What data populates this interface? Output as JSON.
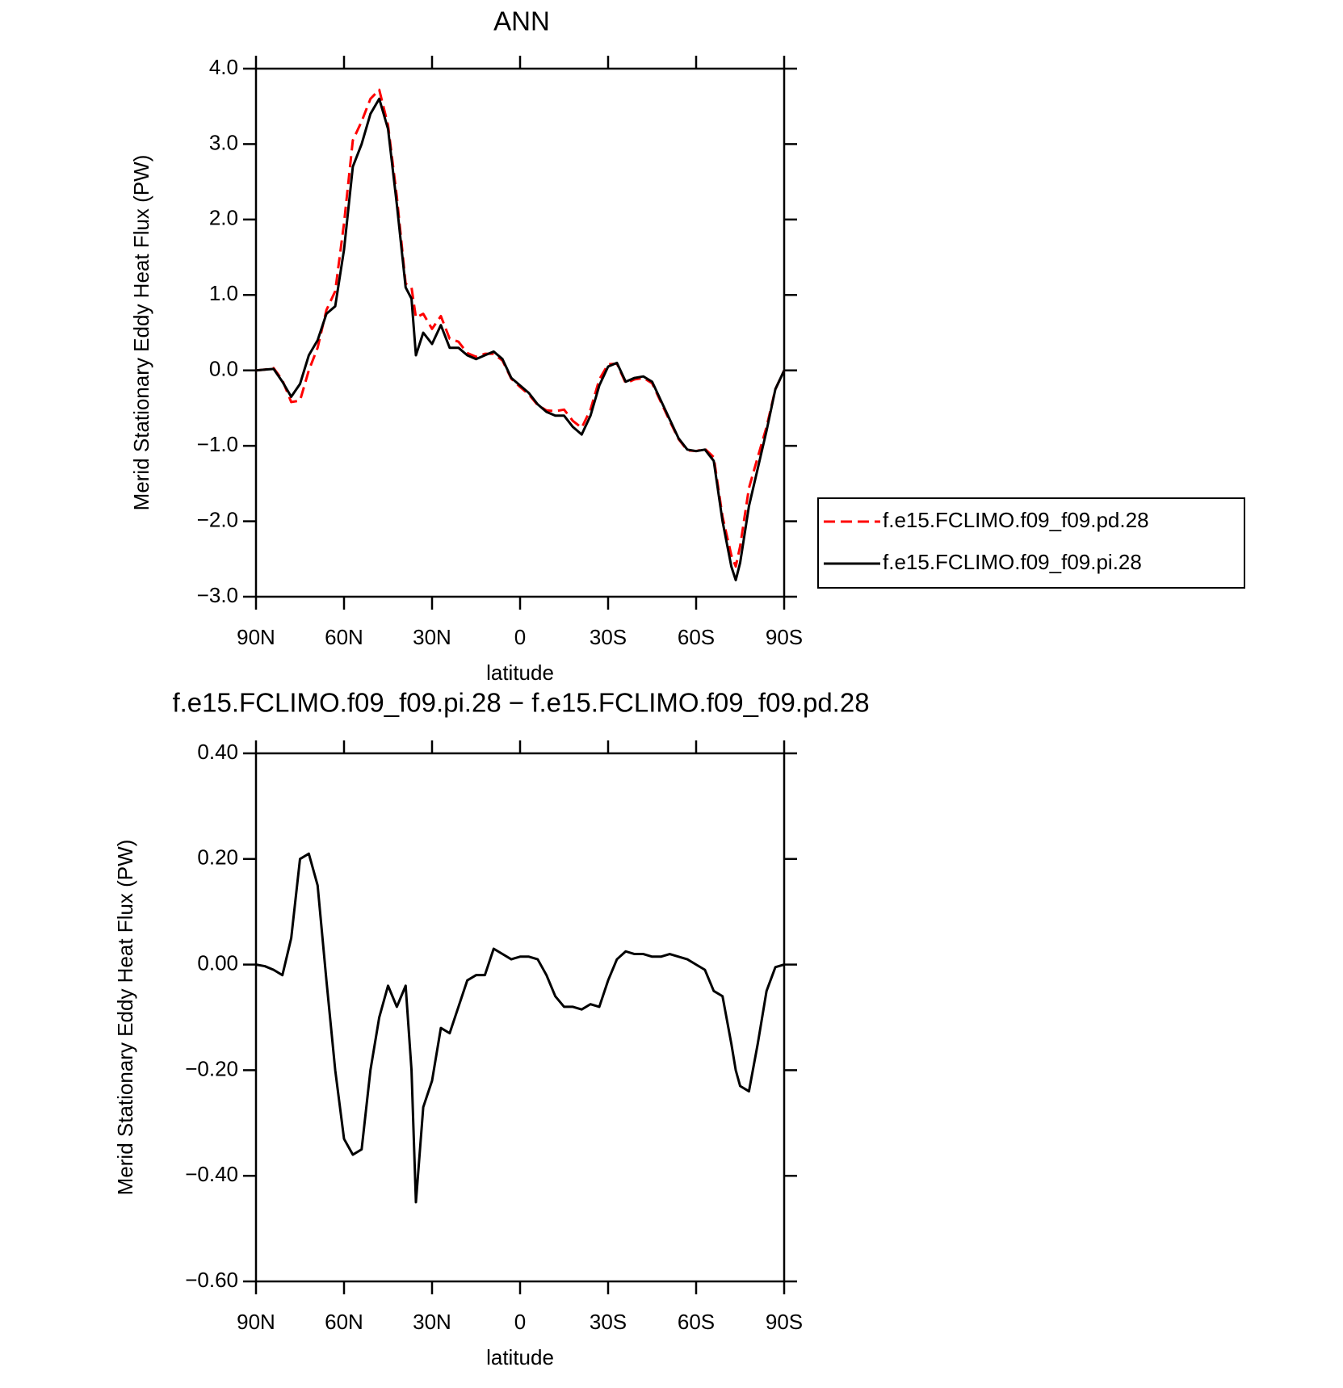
{
  "chart_data": [
    {
      "type": "line",
      "title": "ANN",
      "xlabel": "latitude",
      "ylabel": "Merid Stationary Eddy Heat Flux (PW)",
      "x": [
        90,
        87,
        84,
        81,
        78,
        75,
        72,
        69,
        66,
        63,
        60,
        57,
        54,
        51,
        48,
        45,
        42,
        39,
        37,
        35.5,
        33,
        30,
        27,
        24,
        21,
        18,
        15,
        12,
        9,
        6,
        3,
        0,
        -3,
        -6,
        -9,
        -12,
        -15,
        -18,
        -21,
        -24,
        -27,
        -30,
        -33,
        -36,
        -39,
        -42,
        -45,
        -48,
        -51,
        -54,
        -57,
        -60,
        -63,
        -66,
        -69,
        -72,
        -73.5,
        -75,
        -78,
        -81,
        -84,
        -87,
        -90
      ],
      "series": [
        {
          "name": "f.e15.FCLIMO.f09_f09.pd.28",
          "color": "#ff0000",
          "dashed": true,
          "values": [
            0,
            0.01,
            0.03,
            -0.13,
            -0.42,
            -0.4,
            0.0,
            0.3,
            0.8,
            1.05,
            1.95,
            3.05,
            3.3,
            3.6,
            3.72,
            3.25,
            2.3,
            1.15,
            1.1,
            0.7,
            0.75,
            0.55,
            0.72,
            0.42,
            0.38,
            0.23,
            0.18,
            0.22,
            0.22,
            0.13,
            -0.11,
            -0.22,
            -0.32,
            -0.46,
            -0.53,
            -0.54,
            -0.52,
            -0.67,
            -0.76,
            -0.52,
            -0.12,
            0.08,
            0.09,
            -0.17,
            -0.12,
            -0.1,
            -0.17,
            -0.42,
            -0.67,
            -0.91,
            -1.06,
            -1.07,
            -1.04,
            -1.15,
            -1.94,
            -2.45,
            -2.6,
            -2.33,
            -1.56,
            -1.15,
            -0.75,
            -0.25,
            0
          ]
        },
        {
          "name": "f.e15.FCLIMO.f09_f09.pi.28",
          "color": "#000000",
          "dashed": false,
          "values": [
            0,
            0.01,
            0.02,
            -0.15,
            -0.35,
            -0.18,
            0.2,
            0.4,
            0.75,
            0.85,
            1.6,
            2.7,
            3.0,
            3.4,
            3.6,
            3.2,
            2.2,
            1.1,
            0.95,
            0.2,
            0.5,
            0.35,
            0.6,
            0.3,
            0.3,
            0.2,
            0.15,
            0.2,
            0.25,
            0.15,
            -0.1,
            -0.2,
            -0.3,
            -0.45,
            -0.55,
            -0.6,
            -0.6,
            -0.75,
            -0.85,
            -0.6,
            -0.2,
            0.05,
            0.1,
            -0.15,
            -0.1,
            -0.08,
            -0.15,
            -0.4,
            -0.65,
            -0.9,
            -1.05,
            -1.07,
            -1.05,
            -1.2,
            -2.0,
            -2.6,
            -2.78,
            -2.55,
            -1.8,
            -1.3,
            -0.8,
            -0.25,
            0
          ]
        }
      ],
      "xlim": [
        90,
        -90
      ],
      "xticks": [
        {
          "value": 90,
          "label": "90N"
        },
        {
          "value": 60,
          "label": "60N"
        },
        {
          "value": 30,
          "label": "30N"
        },
        0,
        {
          "value": -30,
          "label": "30S"
        },
        {
          "value": -60,
          "label": "60S"
        },
        {
          "value": -90,
          "label": "90S"
        }
      ],
      "ylim": [
        -3,
        4
      ],
      "yticks": [
        {
          "value": 4,
          "label": "4.0"
        },
        {
          "value": 3,
          "label": "3.0"
        },
        {
          "value": 2,
          "label": "2.0"
        },
        {
          "value": 1,
          "label": "1.0"
        },
        {
          "value": 0,
          "label": "0.0"
        },
        {
          "value": -1,
          "label": "−1.0"
        },
        {
          "value": -2,
          "label": "−2.0"
        },
        {
          "value": -3,
          "label": "−3.0"
        }
      ],
      "legend": "right"
    },
    {
      "type": "line",
      "title": "f.e15.FCLIMO.f09_f09.pi.28 − f.e15.FCLIMO.f09_f09.pd.28",
      "xlabel": "latitude",
      "ylabel": "Merid Stationary Eddy Heat Flux (PW)",
      "x": [
        90,
        87,
        84,
        81,
        78,
        75,
        72,
        69,
        66,
        63,
        60,
        57,
        54,
        51,
        48,
        45,
        42,
        39,
        37,
        35.5,
        33,
        30,
        27,
        24,
        21,
        18,
        15,
        12,
        9,
        6,
        3,
        0,
        -3,
        -6,
        -9,
        -12,
        -15,
        -18,
        -21,
        -24,
        -27,
        -30,
        -33,
        -36,
        -39,
        -42,
        -45,
        -48,
        -51,
        -54,
        -57,
        -60,
        -63,
        -66,
        -69,
        -72,
        -73.5,
        -75,
        -78,
        -81,
        -84,
        -87,
        -90
      ],
      "series": [
        {
          "color": "#000000",
          "dashed": false,
          "values": [
            0,
            -0.003,
            -0.01,
            -0.02,
            0.05,
            0.2,
            0.21,
            0.15,
            -0.03,
            -0.2,
            -0.33,
            -0.36,
            -0.35,
            -0.2,
            -0.1,
            -0.04,
            -0.08,
            -0.04,
            -0.2,
            -0.45,
            -0.27,
            -0.22,
            -0.12,
            -0.13,
            -0.08,
            -0.03,
            -0.02,
            -0.02,
            0.03,
            0.02,
            0.01,
            0.015,
            0.015,
            0.01,
            -0.02,
            -0.06,
            -0.08,
            -0.08,
            -0.085,
            -0.075,
            -0.08,
            -0.03,
            0.01,
            0.025,
            0.02,
            0.02,
            0.015,
            0.015,
            0.02,
            0.015,
            0.01,
            0.0,
            -0.01,
            -0.05,
            -0.06,
            -0.15,
            -0.2,
            -0.23,
            -0.24,
            -0.15,
            -0.05,
            -0.005,
            0
          ]
        }
      ],
      "xlim": [
        90,
        -90
      ],
      "xticks": [
        {
          "value": 90,
          "label": "90N"
        },
        {
          "value": 60,
          "label": "60N"
        },
        {
          "value": 30,
          "label": "30N"
        },
        0,
        {
          "value": -30,
          "label": "30S"
        },
        {
          "value": -60,
          "label": "60S"
        },
        {
          "value": -90,
          "label": "90S"
        }
      ],
      "ylim": [
        -0.6,
        0.4
      ],
      "yticks": [
        {
          "value": 0.4,
          "label": "0.40"
        },
        {
          "value": 0.2,
          "label": "0.20"
        },
        {
          "value": 0,
          "label": "0.00"
        },
        {
          "value": -0.2,
          "label": "−0.20"
        },
        {
          "value": -0.4,
          "label": "−0.40"
        },
        {
          "value": -0.6,
          "label": "−0.60"
        }
      ]
    }
  ]
}
